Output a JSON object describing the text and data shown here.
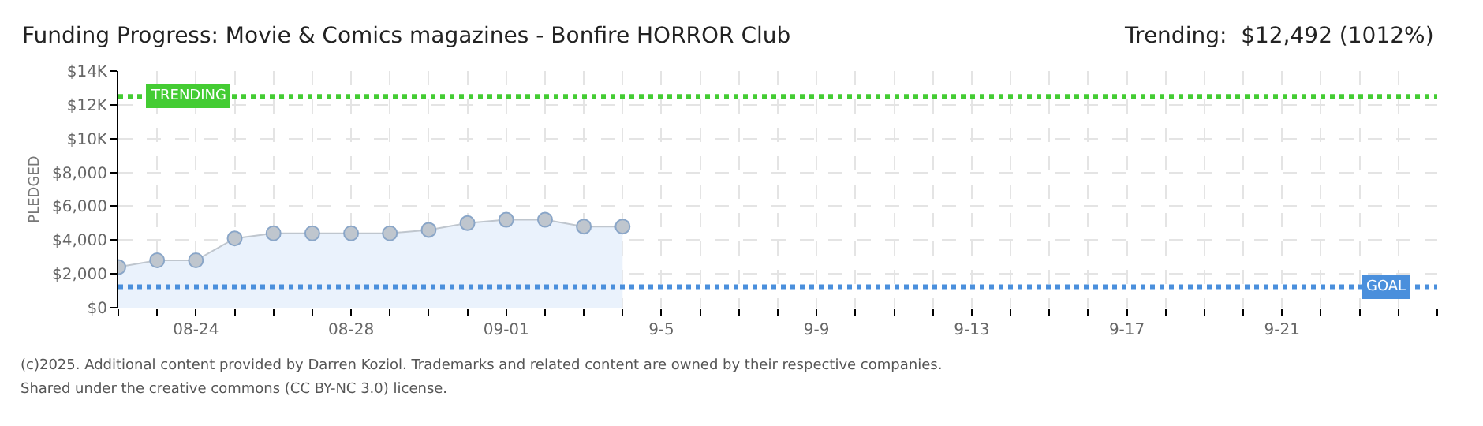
{
  "chart_data": {
    "type": "area",
    "title": "Funding Progress: Movie & Comics magazines - Bonfire HORROR Club",
    "subtitle": "Trending:  $12,492 (1012%)",
    "ylabel": "PLEDGED",
    "x": [
      "2025-08-22",
      "2025-08-23",
      "2025-08-24",
      "2025-08-25",
      "2025-08-26",
      "2025-08-27",
      "2025-08-28",
      "2025-08-29",
      "2025-08-30",
      "2025-08-31",
      "2025-09-01",
      "2025-09-02",
      "2025-09-03",
      "2025-09-04"
    ],
    "series": [
      {
        "color": "#eaf2fc",
        "values": [
          2400,
          2800,
          2800,
          4100,
          4400,
          4400,
          4400,
          4400,
          4600,
          5000,
          5200,
          5200,
          4800,
          4800
        ]
      }
    ],
    "xlim": [
      "2025-08-22",
      "2025-09-25"
    ],
    "xticks": [
      {
        "value": "2025-08-22",
        "label": null
      },
      {
        "value": "2025-08-23",
        "label": null
      },
      {
        "value": "2025-08-24",
        "label": "08-24"
      },
      {
        "value": "2025-08-25",
        "label": null
      },
      {
        "value": "2025-08-26",
        "label": null
      },
      {
        "value": "2025-08-27",
        "label": null
      },
      {
        "value": "2025-08-28",
        "label": "08-28"
      },
      {
        "value": "2025-08-29",
        "label": null
      },
      {
        "value": "2025-08-30",
        "label": null
      },
      {
        "value": "2025-08-31",
        "label": null
      },
      {
        "value": "2025-09-01",
        "label": "09-01"
      },
      {
        "value": "2025-09-02",
        "label": null
      },
      {
        "value": "2025-09-03",
        "label": null
      },
      {
        "value": "2025-09-04",
        "label": null
      },
      {
        "value": "2025-09-05",
        "label": "9-5"
      },
      {
        "value": "2025-09-06",
        "label": null
      },
      {
        "value": "2025-09-07",
        "label": null
      },
      {
        "value": "2025-09-08",
        "label": null
      },
      {
        "value": "2025-09-09",
        "label": "9-9"
      },
      {
        "value": "2025-09-10",
        "label": null
      },
      {
        "value": "2025-09-11",
        "label": null
      },
      {
        "value": "2025-09-12",
        "label": null
      },
      {
        "value": "2025-09-13",
        "label": "9-13"
      },
      {
        "value": "2025-09-14",
        "label": null
      },
      {
        "value": "2025-09-15",
        "label": null
      },
      {
        "value": "2025-09-16",
        "label": null
      },
      {
        "value": "2025-09-17",
        "label": "9-17"
      },
      {
        "value": "2025-09-18",
        "label": null
      },
      {
        "value": "2025-09-19",
        "label": null
      },
      {
        "value": "2025-09-20",
        "label": null
      },
      {
        "value": "2025-09-21",
        "label": "9-21"
      },
      {
        "value": "2025-09-22",
        "label": null
      },
      {
        "value": "2025-09-23",
        "label": null
      },
      {
        "value": "2025-09-24",
        "label": null
      },
      {
        "value": "2025-09-25",
        "label": null
      }
    ],
    "ylim": [
      0,
      14000
    ],
    "yticks": [
      {
        "value": 0,
        "label": "$0"
      },
      {
        "value": 2000,
        "label": "$2,000"
      },
      {
        "value": 4000,
        "label": "$4,000"
      },
      {
        "value": 6000,
        "label": "$6,000"
      },
      {
        "value": 8000,
        "label": "$8,000"
      },
      {
        "value": 10000,
        "label": "$10K"
      },
      {
        "value": 12000,
        "label": "$12K"
      },
      {
        "value": 14000,
        "label": "$14K"
      }
    ],
    "ref_lines": [
      {
        "axis": "y",
        "value": 12492,
        "label": "TRENDING",
        "color": "#44cc33",
        "line_style": "dotted"
      },
      {
        "axis": "y",
        "value": 1234,
        "label": "GOAL",
        "color": "#4a8fdc",
        "line_style": "dotted"
      }
    ],
    "annotations": [
      "(c)2025. Additional content provided by Darren Koziol. Trademarks and related content are owned by their respective companies.",
      "Shared under the creative commons (CC BY-NC 3.0) license."
    ],
    "grid": true,
    "marker": "circle",
    "line_style": "solid"
  }
}
